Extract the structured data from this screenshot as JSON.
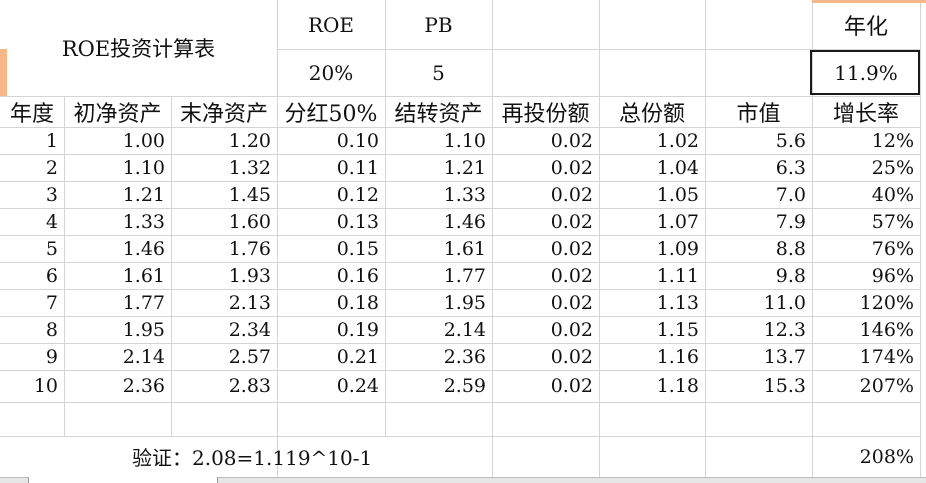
{
  "title": "ROE投资计算表",
  "params": {
    "roe_label": "ROE",
    "roe_value": "20%",
    "pb_label": "PB",
    "pb_value": "5",
    "annual_label": "年化",
    "annual_value": "11.9%"
  },
  "columns": [
    "年度",
    "初净资产",
    "末净资产",
    "分红50%",
    "结转资产",
    "再投份额",
    "总份额",
    "市值",
    "增长率"
  ],
  "rows": [
    [
      "1",
      "1.00",
      "1.20",
      "0.10",
      "1.10",
      "0.02",
      "1.02",
      "5.6",
      "12%"
    ],
    [
      "2",
      "1.10",
      "1.32",
      "0.11",
      "1.21",
      "0.02",
      "1.04",
      "6.3",
      "25%"
    ],
    [
      "3",
      "1.21",
      "1.45",
      "0.12",
      "1.33",
      "0.02",
      "1.05",
      "7.0",
      "40%"
    ],
    [
      "4",
      "1.33",
      "1.60",
      "0.13",
      "1.46",
      "0.02",
      "1.07",
      "7.9",
      "57%"
    ],
    [
      "5",
      "1.46",
      "1.76",
      "0.15",
      "1.61",
      "0.02",
      "1.09",
      "8.8",
      "76%"
    ],
    [
      "6",
      "1.61",
      "1.93",
      "0.16",
      "1.77",
      "0.02",
      "1.11",
      "9.8",
      "96%"
    ],
    [
      "7",
      "1.77",
      "2.13",
      "0.18",
      "1.95",
      "0.02",
      "1.13",
      "11.0",
      "120%"
    ],
    [
      "8",
      "1.95",
      "2.34",
      "0.19",
      "2.14",
      "0.02",
      "1.15",
      "12.3",
      "146%"
    ],
    [
      "9",
      "2.14",
      "2.57",
      "0.21",
      "2.36",
      "0.02",
      "1.16",
      "13.7",
      "174%"
    ],
    [
      "10",
      "2.36",
      "2.83",
      "0.24",
      "2.59",
      "0.02",
      "1.18",
      "15.3",
      "207%"
    ]
  ],
  "footer": {
    "verify_text": "验证：2.08=1.119^10-1",
    "verify_value": "208%"
  }
}
